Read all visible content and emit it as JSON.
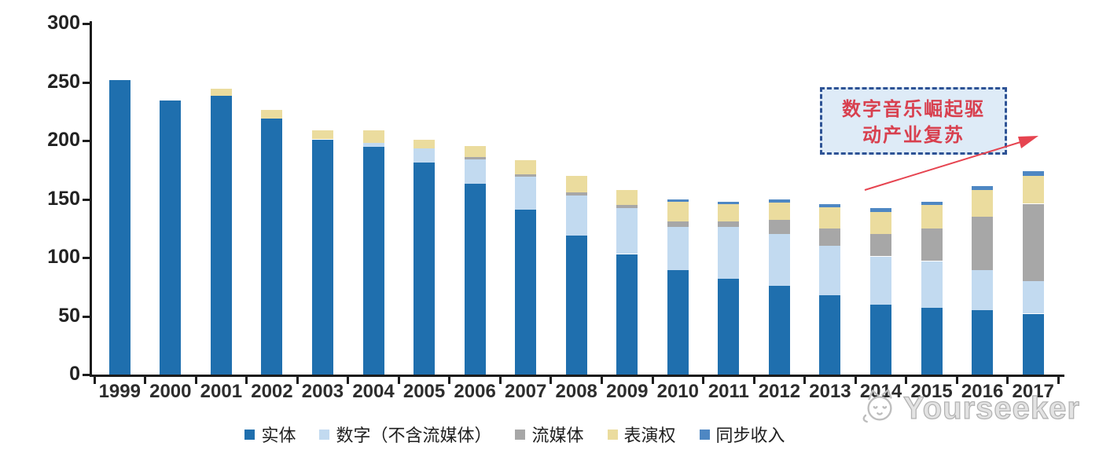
{
  "chart_data": {
    "type": "bar",
    "stacked": true,
    "categories": [
      "1999",
      "2000",
      "2001",
      "2002",
      "2003",
      "2004",
      "2005",
      "2006",
      "2007",
      "2008",
      "2009",
      "2010",
      "2011",
      "2012",
      "2013",
      "2014",
      "2015",
      "2016",
      "2017"
    ],
    "series": [
      {
        "key": "physical",
        "name": "实体",
        "color": "#1F6FAE",
        "values": [
          252,
          234,
          238,
          219,
          201,
          195,
          181,
          163,
          141,
          119,
          103,
          89,
          82,
          76,
          68,
          60,
          57,
          55,
          52
        ]
      },
      {
        "key": "digital-ex-streaming",
        "name": "数字（不含流媒体）",
        "color": "#C2DAF0",
        "values": [
          0,
          0,
          0,
          0,
          0,
          3,
          12,
          21,
          28,
          34,
          39,
          37,
          44,
          44,
          42,
          41,
          40,
          34,
          28
        ]
      },
      {
        "key": "streaming",
        "name": "流媒体",
        "color": "#A7A7A7",
        "values": [
          0,
          0,
          0,
          0,
          0,
          0,
          0,
          2,
          2,
          3,
          3,
          5,
          5,
          12,
          15,
          19,
          28,
          46,
          66
        ]
      },
      {
        "key": "performance-rights",
        "name": "表演权",
        "color": "#EBDC9E",
        "values": [
          0,
          0,
          6,
          7,
          8,
          11,
          8,
          9,
          12,
          14,
          13,
          17,
          15,
          15,
          18,
          19,
          20,
          23,
          24
        ]
      },
      {
        "key": "sync-revenue",
        "name": "同步收入",
        "color": "#4E87C3",
        "values": [
          0,
          0,
          0,
          0,
          0,
          0,
          0,
          0,
          0,
          0,
          0,
          2,
          2,
          3,
          3,
          3,
          3,
          3,
          4
        ]
      }
    ],
    "title": "",
    "xlabel": "",
    "ylabel": "",
    "ylim": [
      0,
      300
    ],
    "y_ticks": [
      0,
      50,
      100,
      150,
      200,
      250,
      300
    ],
    "grid": false,
    "legend_position": "bottom"
  },
  "annotation": {
    "line1": "数字音乐崛起驱",
    "line2": "动产业复苏",
    "border_color": "#2E5395",
    "fill_color": "#DEEBF7",
    "text_color": "#D8404F",
    "arrow_color": "#E64450"
  },
  "watermark": {
    "text": "Yourseeker",
    "logo": "cat-logo-icon",
    "color": "#BDBDBD"
  }
}
